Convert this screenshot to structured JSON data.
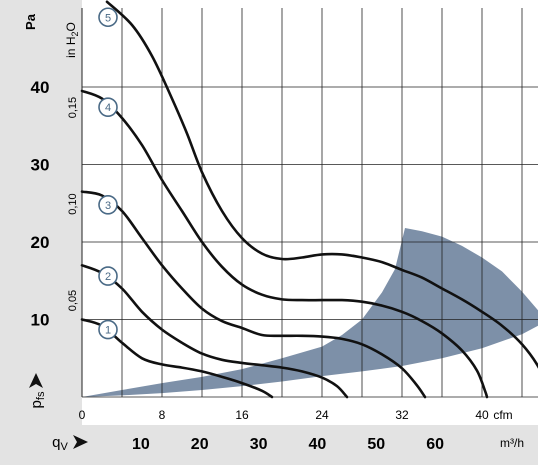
{
  "chart_data": {
    "type": "line",
    "title": "",
    "pressure_axis_pa": {
      "label": "Pa",
      "symbol": "p",
      "subscript": "fs",
      "ticks": [
        10,
        20,
        30,
        40
      ],
      "range": [
        0,
        50
      ]
    },
    "pressure_axis_inh2o": {
      "label": "in H",
      "label_subscript": "2",
      "label_suffix": "O",
      "ticks": [
        "0,05",
        "0,10",
        "0,15"
      ],
      "tick_values_pa": [
        12.45,
        24.9,
        37.35
      ]
    },
    "flow_axis_cfm": {
      "label": "cfm",
      "ticks": [
        0,
        8,
        16,
        24,
        32,
        40
      ],
      "range": [
        0,
        48
      ]
    },
    "flow_axis_m3h": {
      "label": "m³/h",
      "symbol": "q",
      "subscript": "V",
      "ticks": [
        10,
        20,
        30,
        40,
        50,
        60
      ],
      "tick_values_cfm": [
        5.89,
        11.77,
        17.66,
        23.54,
        29.43,
        35.31
      ]
    },
    "series": [
      {
        "name": "1",
        "points": [
          [
            0,
            10.0
          ],
          [
            2,
            9.2
          ],
          [
            4,
            7.0
          ],
          [
            6,
            5.0
          ],
          [
            8,
            4.2
          ],
          [
            10,
            3.8
          ],
          [
            12,
            3.3
          ],
          [
            14,
            2.6
          ],
          [
            16,
            1.8
          ],
          [
            18,
            0.8
          ],
          [
            19,
            0.0
          ]
        ]
      },
      {
        "name": "2",
        "points": [
          [
            0,
            17.0
          ],
          [
            2,
            16.0
          ],
          [
            4,
            14.0
          ],
          [
            6,
            11.0
          ],
          [
            8,
            8.7
          ],
          [
            10,
            7.0
          ],
          [
            12,
            5.6
          ],
          [
            14,
            4.8
          ],
          [
            16,
            4.4
          ],
          [
            18,
            4.1
          ],
          [
            20,
            3.8
          ],
          [
            22,
            3.3
          ],
          [
            24,
            2.5
          ],
          [
            25.5,
            1.4
          ],
          [
            26.5,
            0.0
          ]
        ]
      },
      {
        "name": "3",
        "points": [
          [
            0,
            26.5
          ],
          [
            2,
            26.0
          ],
          [
            4,
            24.0
          ],
          [
            6,
            20.5
          ],
          [
            8,
            17.0
          ],
          [
            10,
            14.0
          ],
          [
            12,
            11.4
          ],
          [
            14,
            9.8
          ],
          [
            16,
            8.9
          ],
          [
            18,
            8.0
          ],
          [
            20,
            7.9
          ],
          [
            22,
            7.9
          ],
          [
            24,
            7.8
          ],
          [
            26,
            7.5
          ],
          [
            28,
            6.8
          ],
          [
            30,
            5.5
          ],
          [
            32,
            3.7
          ],
          [
            33.5,
            1.5
          ],
          [
            34.3,
            0.0
          ]
        ]
      },
      {
        "name": "4",
        "points": [
          [
            0,
            39.5
          ],
          [
            2,
            38.5
          ],
          [
            4,
            36.0
          ],
          [
            6,
            32.5
          ],
          [
            8,
            28.0
          ],
          [
            10,
            24.0
          ],
          [
            12,
            20.0
          ],
          [
            14,
            16.8
          ],
          [
            16,
            14.5
          ],
          [
            18,
            13.2
          ],
          [
            20,
            12.6
          ],
          [
            22,
            12.5
          ],
          [
            24,
            12.5
          ],
          [
            26,
            12.5
          ],
          [
            28,
            12.3
          ],
          [
            30,
            11.8
          ],
          [
            32,
            11.0
          ],
          [
            34,
            9.8
          ],
          [
            36,
            8.2
          ],
          [
            38,
            6.0
          ],
          [
            39.5,
            3.4
          ],
          [
            40.3,
            0.8
          ],
          [
            40.5,
            0.0
          ]
        ]
      },
      {
        "name": "5",
        "points": [
          [
            2.5,
            51.0
          ],
          [
            5,
            48.0
          ],
          [
            7,
            44.0
          ],
          [
            9,
            38.5
          ],
          [
            10.5,
            34.0
          ],
          [
            12,
            29.0
          ],
          [
            14,
            24.0
          ],
          [
            16,
            20.5
          ],
          [
            18,
            18.5
          ],
          [
            20,
            17.8
          ],
          [
            22,
            18.0
          ],
          [
            24,
            18.4
          ],
          [
            26,
            18.4
          ],
          [
            28,
            18.0
          ],
          [
            30,
            17.4
          ],
          [
            32,
            16.4
          ],
          [
            34,
            15.4
          ],
          [
            36,
            14.0
          ],
          [
            38,
            12.6
          ],
          [
            40,
            11.0
          ],
          [
            42,
            9.2
          ],
          [
            44,
            6.8
          ],
          [
            45.5,
            4.2
          ],
          [
            46.5,
            1.5
          ],
          [
            46.8,
            0.0
          ]
        ]
      }
    ],
    "operating_range": {
      "color": "#7d90a8",
      "outline": [
        [
          0,
          0
        ],
        [
          4,
          0.9
        ],
        [
          8,
          1.8
        ],
        [
          12,
          2.6
        ],
        [
          16,
          3.6
        ],
        [
          20,
          5.0
        ],
        [
          24,
          6.5
        ],
        [
          26,
          8.0
        ],
        [
          28,
          10.0
        ],
        [
          30,
          13.5
        ],
        [
          31.3,
          16.5
        ],
        [
          32.3,
          21.8
        ],
        [
          34,
          21.4
        ],
        [
          36,
          20.7
        ],
        [
          38,
          19.5
        ],
        [
          40,
          18.0
        ],
        [
          42,
          16.2
        ],
        [
          44,
          13.6
        ],
        [
          46,
          10.6
        ],
        [
          46.8,
          10.0
        ],
        [
          44,
          8.1
        ],
        [
          40,
          6.3
        ],
        [
          36,
          5.0
        ],
        [
          32,
          4.0
        ],
        [
          28,
          3.3
        ],
        [
          24,
          2.7
        ],
        [
          20,
          2.0
        ],
        [
          16,
          1.4
        ],
        [
          12,
          0.9
        ],
        [
          8,
          0.5
        ],
        [
          4,
          0.2
        ],
        [
          0,
          0
        ]
      ]
    },
    "grid": true,
    "colors": {
      "curve": "#111111",
      "label_ring": "#4a6a86",
      "panel": "#e3e3e3",
      "grid": "#222222"
    }
  }
}
